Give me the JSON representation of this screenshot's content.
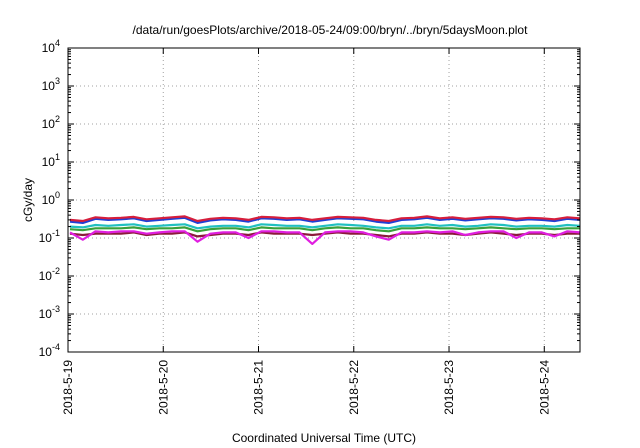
{
  "chart_data": {
    "type": "line",
    "title": "/data/run/goesPlots/archive/2018-05-24/09:00/bryn/../bryn/5daysMoon.plot",
    "xlabel": "Coordinated Universal Time (UTC)",
    "ylabel": "cGy/day",
    "yscale": "log",
    "ylim": [
      0.0001,
      10000
    ],
    "xlim": [
      "2018-05-19",
      "2018-05-24 09:00"
    ],
    "grid": true,
    "legend": "none",
    "x_ticks": [
      "2018-5-19",
      "2018-5-20",
      "2018-5-21",
      "2018-5-22",
      "2018-5-23",
      "2018-5-24"
    ],
    "y_ticks": [
      {
        "base": "10",
        "exp": "-4"
      },
      {
        "base": "10",
        "exp": "-3"
      },
      {
        "base": "10",
        "exp": "-2"
      },
      {
        "base": "10",
        "exp": "-1"
      },
      {
        "base": "10",
        "exp": "0"
      },
      {
        "base": "10",
        "exp": "1"
      },
      {
        "base": "10",
        "exp": "2"
      },
      {
        "base": "10",
        "exp": "3"
      },
      {
        "base": "10",
        "exp": "4"
      }
    ],
    "series": [
      {
        "color": "#d61e3c",
        "values": [
          0.3,
          0.28,
          0.35,
          0.33,
          0.34,
          0.36,
          0.31,
          0.33,
          0.35,
          0.37,
          0.28,
          0.32,
          0.34,
          0.33,
          0.3,
          0.36,
          0.35,
          0.33,
          0.34,
          0.3,
          0.33,
          0.36,
          0.35,
          0.34,
          0.3,
          0.28,
          0.33,
          0.34,
          0.37,
          0.33,
          0.35,
          0.32,
          0.34,
          0.36,
          0.35,
          0.32,
          0.34,
          0.33,
          0.31,
          0.35,
          0.33
        ]
      },
      {
        "color": "#1f3fd6",
        "values": [
          0.27,
          0.25,
          0.32,
          0.3,
          0.31,
          0.33,
          0.28,
          0.3,
          0.32,
          0.34,
          0.25,
          0.29,
          0.31,
          0.3,
          0.27,
          0.33,
          0.32,
          0.3,
          0.31,
          0.27,
          0.3,
          0.33,
          0.32,
          0.31,
          0.27,
          0.25,
          0.3,
          0.31,
          0.34,
          0.3,
          0.32,
          0.29,
          0.31,
          0.33,
          0.32,
          0.29,
          0.31,
          0.3,
          0.28,
          0.32,
          0.3
        ]
      },
      {
        "color": "#20c0c0",
        "values": [
          0.2,
          0.19,
          0.22,
          0.21,
          0.22,
          0.23,
          0.2,
          0.21,
          0.22,
          0.23,
          0.18,
          0.2,
          0.21,
          0.21,
          0.19,
          0.23,
          0.22,
          0.21,
          0.21,
          0.19,
          0.21,
          0.23,
          0.22,
          0.21,
          0.19,
          0.18,
          0.21,
          0.21,
          0.23,
          0.21,
          0.22,
          0.2,
          0.21,
          0.23,
          0.22,
          0.2,
          0.21,
          0.21,
          0.2,
          0.22,
          0.21
        ]
      },
      {
        "color": "#3aa03a",
        "values": [
          0.17,
          0.16,
          0.18,
          0.18,
          0.18,
          0.19,
          0.17,
          0.18,
          0.18,
          0.19,
          0.15,
          0.17,
          0.18,
          0.18,
          0.16,
          0.19,
          0.18,
          0.18,
          0.18,
          0.16,
          0.18,
          0.19,
          0.18,
          0.18,
          0.16,
          0.15,
          0.18,
          0.18,
          0.19,
          0.18,
          0.18,
          0.17,
          0.18,
          0.19,
          0.18,
          0.17,
          0.18,
          0.18,
          0.17,
          0.18,
          0.18
        ]
      },
      {
        "color": "#e01ee0",
        "values": [
          0.14,
          0.09,
          0.15,
          0.14,
          0.15,
          0.15,
          0.13,
          0.14,
          0.15,
          0.15,
          0.08,
          0.13,
          0.14,
          0.14,
          0.1,
          0.15,
          0.15,
          0.14,
          0.14,
          0.07,
          0.14,
          0.15,
          0.15,
          0.14,
          0.11,
          0.09,
          0.14,
          0.14,
          0.15,
          0.14,
          0.15,
          0.12,
          0.14,
          0.15,
          0.15,
          0.1,
          0.14,
          0.14,
          0.11,
          0.15,
          0.14
        ]
      },
      {
        "color": "#8b1a3a",
        "values": [
          0.13,
          0.12,
          0.13,
          0.13,
          0.13,
          0.14,
          0.12,
          0.13,
          0.13,
          0.14,
          0.11,
          0.12,
          0.13,
          0.13,
          0.12,
          0.14,
          0.13,
          0.13,
          0.13,
          0.12,
          0.13,
          0.14,
          0.13,
          0.13,
          0.12,
          0.11,
          0.13,
          0.13,
          0.14,
          0.13,
          0.13,
          0.12,
          0.13,
          0.14,
          0.13,
          0.12,
          0.13,
          0.13,
          0.12,
          0.13,
          0.13
        ]
      }
    ]
  }
}
